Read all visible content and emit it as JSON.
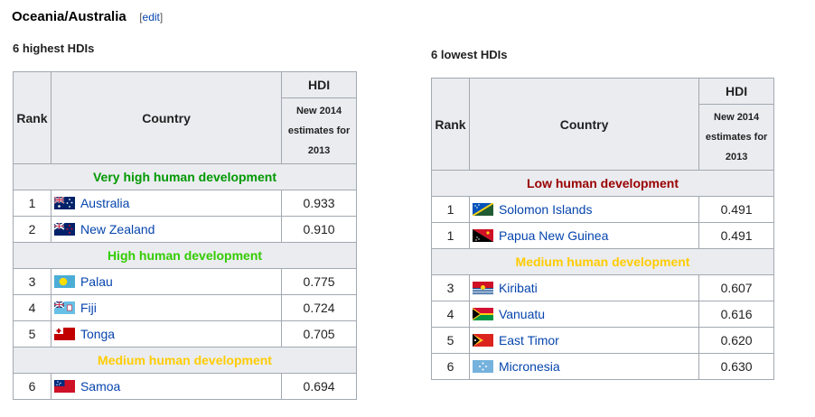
{
  "heading": {
    "title": "Oceania/Australia",
    "edit_label": "edit"
  },
  "colors": {
    "very_high": "#009900",
    "high": "#33cc00",
    "medium": "#ffcc00",
    "low": "#990000",
    "link": "#0645ad"
  },
  "highest": {
    "caption": "6 highest HDIs",
    "col_rank": "Rank",
    "col_country": "Country",
    "col_hdi": "HDI",
    "col_hdi_sub": "New 2014 estimates for 2013",
    "sections": {
      "very_high": "Very high human development",
      "high": "High human development",
      "medium": "Medium human development"
    },
    "rows": [
      {
        "rank": "1",
        "country": "Australia",
        "hdi": "0.933",
        "flag": "australia-flag-icon"
      },
      {
        "rank": "2",
        "country": "New Zealand",
        "hdi": "0.910",
        "flag": "new-zealand-flag-icon"
      },
      {
        "rank": "3",
        "country": "Palau",
        "hdi": "0.775",
        "flag": "palau-flag-icon"
      },
      {
        "rank": "4",
        "country": "Fiji",
        "hdi": "0.724",
        "flag": "fiji-flag-icon"
      },
      {
        "rank": "5",
        "country": "Tonga",
        "hdi": "0.705",
        "flag": "tonga-flag-icon"
      },
      {
        "rank": "6",
        "country": "Samoa",
        "hdi": "0.694",
        "flag": "samoa-flag-icon"
      }
    ]
  },
  "lowest": {
    "caption": "6 lowest HDIs",
    "col_rank": "Rank",
    "col_country": "Country",
    "col_hdi": "HDI",
    "col_hdi_sub": "New 2014 estimates for 2013",
    "sections": {
      "low": "Low human development",
      "medium": "Medium human development"
    },
    "rows": [
      {
        "rank": "1",
        "country": "Solomon Islands",
        "hdi": "0.491",
        "flag": "solomon-islands-flag-icon"
      },
      {
        "rank": "1",
        "country": "Papua New Guinea",
        "hdi": "0.491",
        "flag": "papua-new-guinea-flag-icon"
      },
      {
        "rank": "3",
        "country": "Kiribati",
        "hdi": "0.607",
        "flag": "kiribati-flag-icon"
      },
      {
        "rank": "4",
        "country": "Vanuatu",
        "hdi": "0.616",
        "flag": "vanuatu-flag-icon"
      },
      {
        "rank": "5",
        "country": "East Timor",
        "hdi": "0.620",
        "flag": "east-timor-flag-icon"
      },
      {
        "rank": "6",
        "country": "Micronesia",
        "hdi": "0.630",
        "flag": "micronesia-flag-icon"
      }
    ]
  }
}
